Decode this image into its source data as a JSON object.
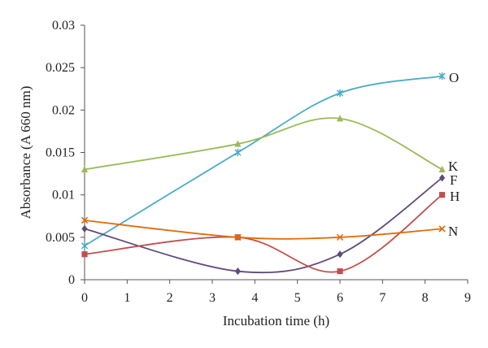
{
  "chart_data": {
    "type": "scatter",
    "title": "",
    "xlabel": "Incubation time (h)",
    "ylabel": "Absorbance (A 660 nm)",
    "xlim": [
      0,
      9
    ],
    "ylim": [
      0,
      0.03
    ],
    "xticks": [
      "0",
      "1",
      "2",
      "3",
      "4",
      "5",
      "6",
      "7",
      "8",
      "9"
    ],
    "yticks": [
      "0",
      "0.005",
      "0.01",
      "0.015",
      "0.02",
      "0.025",
      "0.03"
    ],
    "grid": false,
    "legend": "inline labels at right end of each series",
    "smooth": true,
    "x": [
      0,
      3.6,
      6,
      8.4
    ],
    "series": [
      {
        "name": "O",
        "values": [
          0.004,
          0.015,
          0.022,
          0.024
        ],
        "color": "#4bacc6",
        "marker": "star"
      },
      {
        "name": "K",
        "values": [
          0.013,
          0.016,
          0.019,
          0.013
        ],
        "color": "#9bbb59",
        "marker": "triangle"
      },
      {
        "name": "F",
        "values": [
          0.006,
          0.001,
          0.003,
          0.012
        ],
        "color": "#604a7b",
        "marker": "diamond"
      },
      {
        "name": "H",
        "values": [
          0.003,
          0.005,
          0.001,
          0.01
        ],
        "color": "#c0504d",
        "marker": "square"
      },
      {
        "name": "N",
        "values": [
          0.007,
          0.005,
          0.005,
          0.006
        ],
        "color": "#e46c0a",
        "marker": "x"
      }
    ]
  }
}
